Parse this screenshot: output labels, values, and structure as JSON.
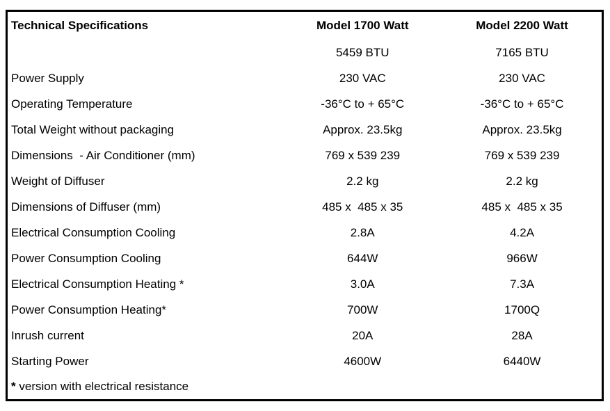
{
  "table": {
    "header": {
      "col1": "Technical Specifications",
      "col2": "Model 1700 Watt",
      "col3": "Model 2200 Watt"
    },
    "rows": [
      {
        "label": "",
        "model_1700": "5459 BTU",
        "model_2200": "7165 BTU"
      },
      {
        "label": "Power Supply",
        "model_1700": "230 VAC",
        "model_2200": "230 VAC"
      },
      {
        "label": "Operating Temperature",
        "model_1700": "-36°C to + 65°C",
        "model_2200": "-36°C to + 65°C"
      },
      {
        "label": "Total Weight without packaging",
        "model_1700": "Approx. 23.5kg",
        "model_2200": "Approx. 23.5kg"
      },
      {
        "label": "Dimensions  - Air Conditioner (mm)",
        "model_1700": "769 x 539 239",
        "model_2200": "769 x 539 239"
      },
      {
        "label": "Weight of Diffuser",
        "model_1700": "2.2 kg",
        "model_2200": "2.2 kg"
      },
      {
        "label": "Dimensions of Diffuser (mm)",
        "model_1700": "485 x  485 x 35",
        "model_2200": "485 x  485 x 35"
      },
      {
        "label": "Electrical Consumption Cooling",
        "model_1700": "2.8A",
        "model_2200": "4.2A"
      },
      {
        "label": "Power Consumption Cooling",
        "model_1700": "644W",
        "model_2200": "966W"
      },
      {
        "label": "Electrical Consumption Heating *",
        "model_1700": "3.0A",
        "model_2200": "7.3A"
      },
      {
        "label": "Power Consumption Heating*",
        "model_1700": "700W",
        "model_2200": "1700Q"
      },
      {
        "label": "Inrush current",
        "model_1700": "20A",
        "model_2200": "28A"
      },
      {
        "label": "Starting Power",
        "model_1700": "4600W",
        "model_2200": "6440W"
      }
    ],
    "footnote": {
      "marker": "*",
      "text": "version with electrical resistance"
    }
  },
  "colors": {
    "border": "#000000",
    "text": "#000000",
    "background": "#ffffff"
  }
}
